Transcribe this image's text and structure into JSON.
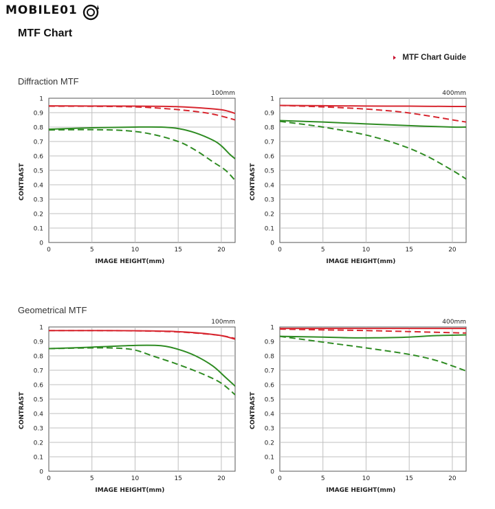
{
  "brand": {
    "logo_text": "MOBILE01",
    "logo_mark_icon": "mobile01-logo-icon"
  },
  "page": {
    "title": "MTF Chart"
  },
  "guide_link": {
    "label": "MTF Chart Guide",
    "icon": "triangle-right-icon",
    "color": "#c8102e"
  },
  "sections": [
    {
      "title": "Diffraction MTF"
    },
    {
      "title": "Geometrical MTF"
    }
  ],
  "colors": {
    "red": "#d7262f",
    "green": "#2e8b22",
    "grid": "#bfbfbf"
  },
  "chart_data": [
    {
      "type": "line",
      "section": "Diffraction MTF",
      "title": "100mm",
      "xlabel": "IMAGE HEIGHT(mm)",
      "ylabel": "CONTRAST",
      "xlim": [
        0,
        21.6
      ],
      "ylim": [
        0,
        1
      ],
      "xticks": [
        0,
        5,
        10,
        15,
        20
      ],
      "yticks": [
        0,
        0.1,
        0.2,
        0.3,
        0.4,
        0.5,
        0.6,
        0.7,
        0.8,
        0.9,
        1
      ],
      "grid": true,
      "series": [
        {
          "color": "red",
          "dash": false,
          "x": [
            0,
            5,
            10,
            14,
            17,
            20,
            21.6
          ],
          "y": [
            0.947,
            0.946,
            0.945,
            0.943,
            0.935,
            0.92,
            0.895
          ]
        },
        {
          "color": "red",
          "dash": true,
          "x": [
            0,
            5,
            10,
            13,
            16,
            19,
            21.6
          ],
          "y": [
            0.945,
            0.944,
            0.94,
            0.93,
            0.915,
            0.89,
            0.85
          ]
        },
        {
          "color": "green",
          "dash": false,
          "x": [
            0,
            5,
            10,
            13,
            15,
            17,
            19,
            20,
            21,
            21.6
          ],
          "y": [
            0.785,
            0.795,
            0.8,
            0.8,
            0.79,
            0.76,
            0.71,
            0.67,
            0.61,
            0.58
          ]
        },
        {
          "color": "green",
          "dash": true,
          "x": [
            0,
            5,
            9,
            12,
            15,
            17,
            19,
            20.5,
            21.6
          ],
          "y": [
            0.78,
            0.782,
            0.775,
            0.75,
            0.7,
            0.64,
            0.56,
            0.5,
            0.43
          ]
        }
      ]
    },
    {
      "type": "line",
      "section": "Diffraction MTF",
      "title": "400mm",
      "xlabel": "IMAGE HEIGHT(mm)",
      "ylabel": "CONTRAST",
      "xlim": [
        0,
        21.6
      ],
      "ylim": [
        0,
        1
      ],
      "xticks": [
        0,
        5,
        10,
        15,
        20
      ],
      "yticks": [
        0,
        0.1,
        0.2,
        0.3,
        0.4,
        0.5,
        0.6,
        0.7,
        0.8,
        0.9,
        1
      ],
      "grid": true,
      "series": [
        {
          "color": "red",
          "dash": false,
          "x": [
            0,
            5,
            10,
            15,
            20,
            21.6
          ],
          "y": [
            0.95,
            0.948,
            0.946,
            0.945,
            0.943,
            0.943
          ]
        },
        {
          "color": "red",
          "dash": true,
          "x": [
            0,
            5,
            10,
            14,
            17,
            20,
            21.6
          ],
          "y": [
            0.95,
            0.94,
            0.925,
            0.905,
            0.88,
            0.85,
            0.835
          ]
        },
        {
          "color": "green",
          "dash": false,
          "x": [
            0,
            5,
            10,
            15,
            20,
            21.6
          ],
          "y": [
            0.845,
            0.835,
            0.822,
            0.81,
            0.8,
            0.8
          ]
        },
        {
          "color": "green",
          "dash": true,
          "x": [
            0,
            5,
            10,
            14,
            17,
            20,
            21.6
          ],
          "y": [
            0.84,
            0.8,
            0.745,
            0.675,
            0.6,
            0.5,
            0.44
          ]
        }
      ]
    },
    {
      "type": "line",
      "section": "Geometrical MTF",
      "title": "100mm",
      "xlabel": "IMAGE HEIGHT(mm)",
      "ylabel": "CONTRAST",
      "xlim": [
        0,
        21.6
      ],
      "ylim": [
        0,
        1
      ],
      "xticks": [
        0,
        5,
        10,
        15,
        20
      ],
      "yticks": [
        0,
        0.1,
        0.2,
        0.3,
        0.4,
        0.5,
        0.6,
        0.7,
        0.8,
        0.9,
        1
      ],
      "grid": true,
      "series": [
        {
          "color": "red",
          "dash": false,
          "x": [
            0,
            5,
            10,
            14,
            17,
            20,
            21.6
          ],
          "y": [
            0.975,
            0.975,
            0.974,
            0.97,
            0.96,
            0.94,
            0.915
          ]
        },
        {
          "color": "red",
          "dash": true,
          "x": [
            0,
            5,
            10,
            14,
            17,
            20,
            21.6
          ],
          "y": [
            0.975,
            0.975,
            0.973,
            0.968,
            0.958,
            0.94,
            0.92
          ]
        },
        {
          "color": "green",
          "dash": false,
          "x": [
            0,
            5,
            10,
            13,
            15,
            17,
            19,
            20.5,
            21.6
          ],
          "y": [
            0.85,
            0.86,
            0.872,
            0.87,
            0.845,
            0.8,
            0.73,
            0.65,
            0.59
          ]
        },
        {
          "color": "green",
          "dash": true,
          "x": [
            0,
            5,
            8,
            10,
            12,
            15,
            18,
            20,
            21.6
          ],
          "y": [
            0.85,
            0.855,
            0.853,
            0.84,
            0.8,
            0.74,
            0.67,
            0.61,
            0.53
          ]
        }
      ]
    },
    {
      "type": "line",
      "section": "Geometrical MTF",
      "title": "400mm",
      "xlabel": "IMAGE HEIGHT(mm)",
      "ylabel": "CONTRAST",
      "xlim": [
        0,
        21.6
      ],
      "ylim": [
        0,
        1
      ],
      "xticks": [
        0,
        5,
        10,
        15,
        20
      ],
      "yticks": [
        0,
        0.1,
        0.2,
        0.3,
        0.4,
        0.5,
        0.6,
        0.7,
        0.8,
        0.9,
        1
      ],
      "grid": true,
      "series": [
        {
          "color": "red",
          "dash": false,
          "x": [
            0,
            5,
            10,
            15,
            20,
            21.6
          ],
          "y": [
            0.99,
            0.99,
            0.99,
            0.99,
            0.99,
            0.99
          ]
        },
        {
          "color": "red",
          "dash": true,
          "x": [
            0,
            5,
            10,
            15,
            20,
            21.6
          ],
          "y": [
            0.985,
            0.98,
            0.975,
            0.968,
            0.96,
            0.958
          ]
        },
        {
          "color": "green",
          "dash": false,
          "x": [
            0,
            5,
            8,
            11,
            15,
            18,
            21.6
          ],
          "y": [
            0.935,
            0.93,
            0.925,
            0.925,
            0.93,
            0.94,
            0.945
          ]
        },
        {
          "color": "green",
          "dash": true,
          "x": [
            0,
            5,
            10,
            15,
            18,
            20,
            21.6
          ],
          "y": [
            0.935,
            0.895,
            0.855,
            0.81,
            0.77,
            0.73,
            0.695
          ]
        }
      ]
    }
  ]
}
